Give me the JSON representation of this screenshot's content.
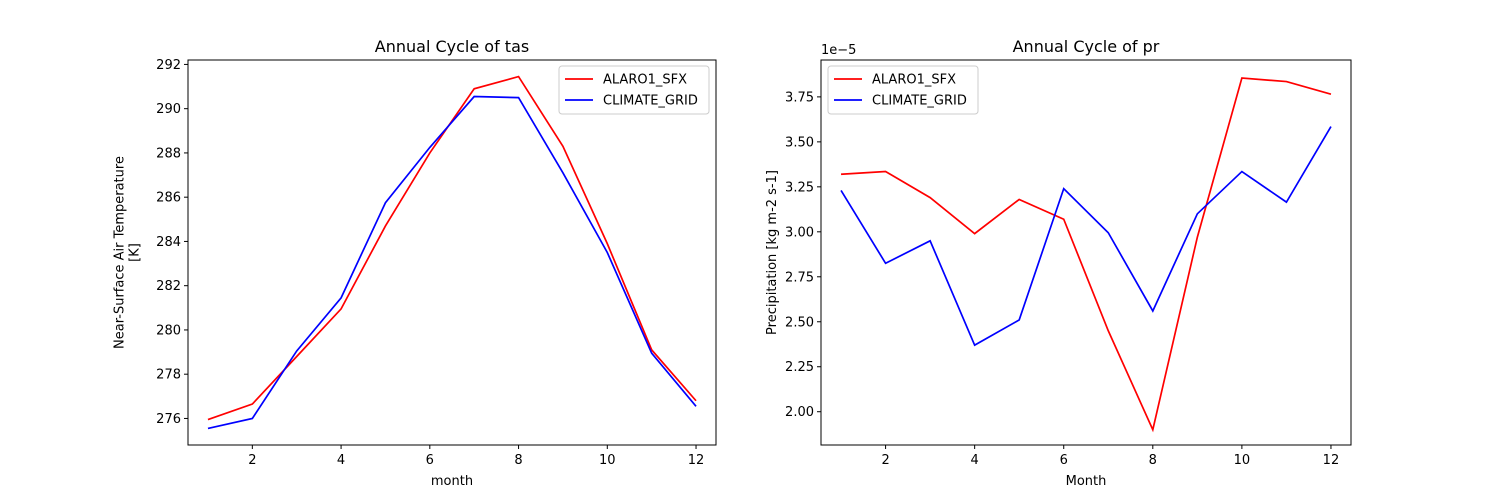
{
  "chart_data": [
    {
      "type": "line",
      "title": "Annual Cycle of tas",
      "xlabel": "month",
      "ylabel": "Near-Surface Air Temperature\n[K]",
      "xlim": [
        0.55,
        12.45
      ],
      "ylim": [
        274.8,
        292.2
      ],
      "xticks": [
        2,
        4,
        6,
        8,
        10,
        12
      ],
      "yticks": [
        276,
        278,
        280,
        282,
        284,
        286,
        288,
        290,
        292
      ],
      "tick_format": "int",
      "y_offset_text": "",
      "legend": "upper right",
      "x": [
        1,
        2,
        3,
        4,
        5,
        6,
        7,
        8,
        9,
        10,
        11,
        12
      ],
      "series": [
        {
          "name": "ALARO1_SFX",
          "color": "#ff0000",
          "values": [
            275.95,
            276.65,
            278.8,
            280.95,
            284.7,
            288.0,
            290.9,
            291.45,
            288.3,
            283.9,
            279.1,
            276.8
          ]
        },
        {
          "name": "CLIMATE_GRID",
          "color": "#0000ff",
          "values": [
            275.55,
            276.0,
            279.05,
            281.45,
            285.75,
            288.25,
            290.55,
            290.5,
            287.1,
            283.5,
            278.95,
            276.55
          ]
        }
      ]
    },
    {
      "type": "line",
      "title": "Annual Cycle of pr",
      "xlabel": "Month",
      "ylabel": "Precipitation [kg m-2 s-1]",
      "xlim": [
        0.55,
        12.45
      ],
      "ylim": [
        1.815,
        3.955
      ],
      "xticks": [
        2,
        4,
        6,
        8,
        10,
        12
      ],
      "yticks": [
        2.0,
        2.25,
        2.5,
        2.75,
        3.0,
        3.25,
        3.5,
        3.75
      ],
      "tick_format": "2dp",
      "y_offset_text": "1e−5",
      "legend": "upper left",
      "x": [
        1,
        2,
        3,
        4,
        5,
        6,
        7,
        8,
        9,
        10,
        11,
        12
      ],
      "series": [
        {
          "name": "ALARO1_SFX",
          "color": "#ff0000",
          "values": [
            3.32,
            3.335,
            3.19,
            2.99,
            3.18,
            3.07,
            2.45,
            1.9,
            2.97,
            3.855,
            3.835,
            3.765
          ]
        },
        {
          "name": "CLIMATE_GRID",
          "color": "#0000ff",
          "values": [
            3.23,
            2.825,
            2.95,
            2.37,
            2.51,
            3.24,
            2.995,
            2.56,
            3.1,
            3.335,
            3.165,
            3.585
          ]
        }
      ]
    }
  ]
}
